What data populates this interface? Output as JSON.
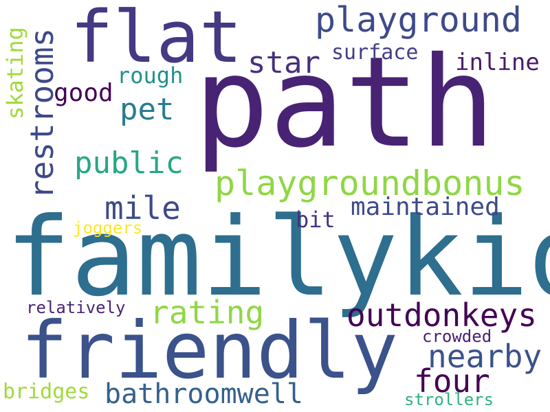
{
  "words": [
    {
      "text": "path",
      "color": "#482374"
    },
    {
      "text": "familykid",
      "color": "#2e6e8e"
    },
    {
      "text": "flat",
      "color": "#443983"
    },
    {
      "text": "friendly",
      "color": "#3b528b"
    },
    {
      "text": "playground",
      "color": "#3e4a89"
    },
    {
      "text": "playgroundbonus",
      "color": "#8fd744"
    },
    {
      "text": "public",
      "color": "#26a784"
    },
    {
      "text": "mile",
      "color": "#3e4a89"
    },
    {
      "text": "star",
      "color": "#472f7d"
    },
    {
      "text": "surface",
      "color": "#433e85"
    },
    {
      "text": "inline",
      "color": "#481b6d"
    },
    {
      "text": "rough",
      "color": "#21918c"
    },
    {
      "text": "good",
      "color": "#440154"
    },
    {
      "text": "pet",
      "color": "#287c8e"
    },
    {
      "text": "restrooms",
      "color": "#3e4989"
    },
    {
      "text": "skating",
      "color": "#a0da39"
    },
    {
      "text": "maintained",
      "color": "#3e4a89"
    },
    {
      "text": "bit",
      "color": "#46327e"
    },
    {
      "text": "joggers",
      "color": "#fde725"
    },
    {
      "text": "rating",
      "color": "#8fd744"
    },
    {
      "text": "outdonkeys",
      "color": "#440154"
    },
    {
      "text": "relatively",
      "color": "#482475"
    },
    {
      "text": "nearby",
      "color": "#3b528b"
    },
    {
      "text": "crowded",
      "color": "#482071"
    },
    {
      "text": "four",
      "color": "#440154"
    },
    {
      "text": "bathroomwell",
      "color": "#35608d"
    },
    {
      "text": "bridges",
      "color": "#a0da39"
    },
    {
      "text": "strollers",
      "color": "#2db27d"
    }
  ]
}
